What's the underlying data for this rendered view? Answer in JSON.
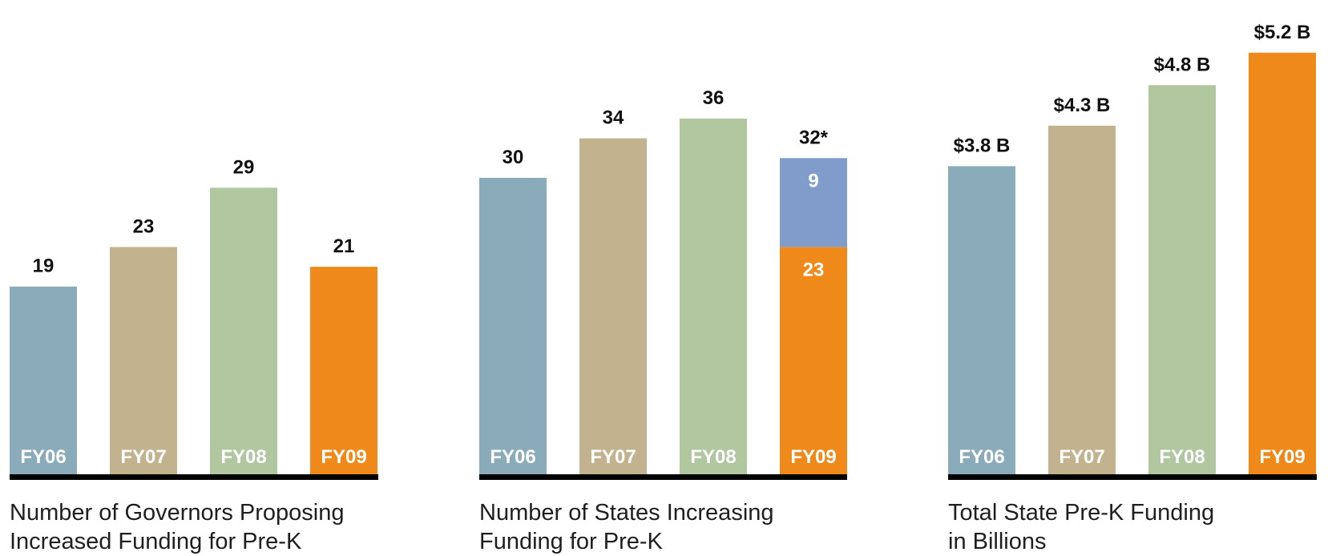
{
  "colors": {
    "fy06": "#8AACBA",
    "fy07": "#C3B28E",
    "fy08": "#B0C7A0",
    "fy09": "#EF8A1A",
    "fy09_extra": "#7F9CCB",
    "baseline": "#000000",
    "category_label": "#ffffff",
    "value_label": "#111111"
  },
  "chart_data": [
    {
      "type": "bar",
      "categories": [
        "FY06",
        "FY07",
        "FY08",
        "FY09"
      ],
      "values": [
        19,
        23,
        29,
        21
      ],
      "value_labels": [
        "19",
        "23",
        "29",
        "21"
      ],
      "caption": [
        "Number of Governors Proposing",
        "Increased Funding for Pre-K"
      ],
      "ylim": [
        0,
        48
      ],
      "grid": false,
      "legend": "none"
    },
    {
      "type": "bar",
      "stacked": true,
      "categories": [
        "FY06",
        "FY07",
        "FY08",
        "FY09"
      ],
      "series": [
        {
          "values": [
            30,
            34,
            36,
            23
          ],
          "segment_labels": [
            "",
            "",
            "",
            "23"
          ]
        },
        {
          "values": [
            0,
            0,
            0,
            9
          ],
          "segment_labels": [
            "",
            "",
            "",
            "9"
          ]
        }
      ],
      "totals": [
        30,
        34,
        36,
        32
      ],
      "value_labels": [
        "30",
        "34",
        "36",
        "32*"
      ],
      "caption": [
        "Number of States Increasing",
        "Funding for Pre-K"
      ],
      "ylim": [
        0,
        48
      ],
      "grid": false,
      "legend": "none"
    },
    {
      "type": "bar",
      "categories": [
        "FY06",
        "FY07",
        "FY08",
        "FY09"
      ],
      "values": [
        3.8,
        4.3,
        4.8,
        5.2
      ],
      "value_labels": [
        "$3.8 B",
        "$4.3 B",
        "$4.8 B",
        "$5.2 B"
      ],
      "caption": [
        "Total State Pre-K Funding",
        "in Billions"
      ],
      "ylim": [
        0,
        5.85
      ],
      "grid": false,
      "legend": "none"
    }
  ]
}
